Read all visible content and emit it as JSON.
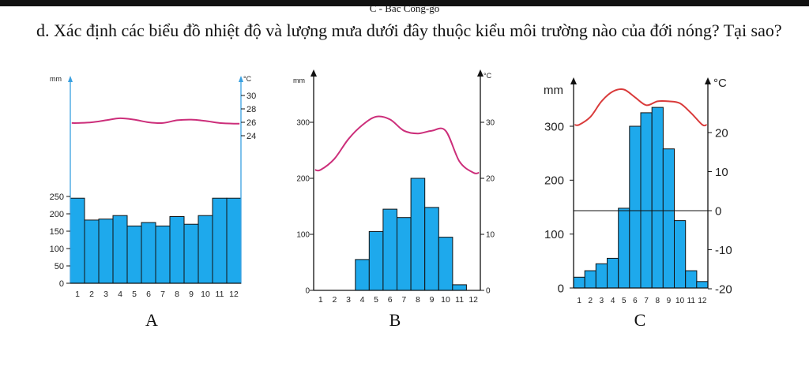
{
  "header": {
    "top_caption": "C - Bắc Công-gô",
    "question": "d. Xác định các biểu đồ nhiệt độ và lượng mưa dưới đây thuộc kiểu môi trường nào của đới nóng? Tại sao?"
  },
  "colors": {
    "bar": "#1ea9ec",
    "bar_border": "#111111",
    "temp_line": "#cc2e7a",
    "temp_line_c": "#d93a3a"
  },
  "chart_data": [
    {
      "type": "bar",
      "label": "A",
      "categories": [
        "1",
        "2",
        "3",
        "4",
        "5",
        "6",
        "7",
        "8",
        "9",
        "10",
        "11",
        "12"
      ],
      "rain_unit": "mm",
      "temp_unit": "°C",
      "rain_ticks": [
        "0",
        "50",
        "100",
        "150",
        "200",
        "250"
      ],
      "temp_ticks": [
        "30",
        "28",
        "26",
        "24"
      ],
      "series": [
        {
          "values": [
            245,
            182,
            185,
            195,
            165,
            175,
            165,
            192,
            170,
            195,
            245,
            245
          ]
        },
        {
          "values": [
            25.9,
            26.0,
            26.3,
            26.6,
            26.4,
            26.0,
            25.9,
            26.3,
            26.4,
            26.2,
            25.9,
            25.8
          ]
        }
      ],
      "rain_range": [
        0,
        250
      ],
      "temp_range": [
        24,
        30
      ]
    },
    {
      "type": "bar",
      "label": "B",
      "categories": [
        "1",
        "2",
        "3",
        "4",
        "5",
        "6",
        "7",
        "8",
        "9",
        "10",
        "11",
        "12"
      ],
      "rain_unit": "mm",
      "temp_unit": "°C",
      "rain_ticks": [
        "0",
        "100",
        "200",
        "300"
      ],
      "temp_ticks": [
        "0",
        "10",
        "20",
        "30"
      ],
      "series": [
        {
          "values": [
            0,
            0,
            0,
            55,
            105,
            145,
            130,
            200,
            148,
            95,
            10,
            0
          ]
        },
        {
          "values": [
            21.5,
            23.5,
            27.0,
            29.5,
            31.0,
            30.5,
            28.5,
            28.0,
            28.5,
            28.5,
            23.0,
            21.0
          ]
        }
      ],
      "rain_range": [
        0,
        300
      ],
      "temp_range": [
        0,
        30
      ]
    },
    {
      "type": "bar",
      "label": "C",
      "categories": [
        "1",
        "2",
        "3",
        "4",
        "5",
        "6",
        "7",
        "8",
        "9",
        "10",
        "11",
        "12"
      ],
      "rain_unit": "mm",
      "temp_unit": "°C",
      "rain_ticks": [
        "0",
        "100",
        "200",
        "300"
      ],
      "temp_ticks": [
        "-20",
        "-10",
        "0",
        "10",
        "20"
      ],
      "series": [
        {
          "values": [
            20,
            32,
            45,
            55,
            148,
            300,
            325,
            335,
            258,
            125,
            32,
            12
          ]
        },
        {
          "values": [
            22.0,
            24.0,
            28.0,
            30.5,
            31.0,
            29.0,
            27.0,
            28.0,
            28.0,
            27.5,
            25.0,
            22.0
          ]
        }
      ],
      "rain_range": [
        0,
        300
      ],
      "temp_range": [
        -20,
        20
      ]
    }
  ]
}
